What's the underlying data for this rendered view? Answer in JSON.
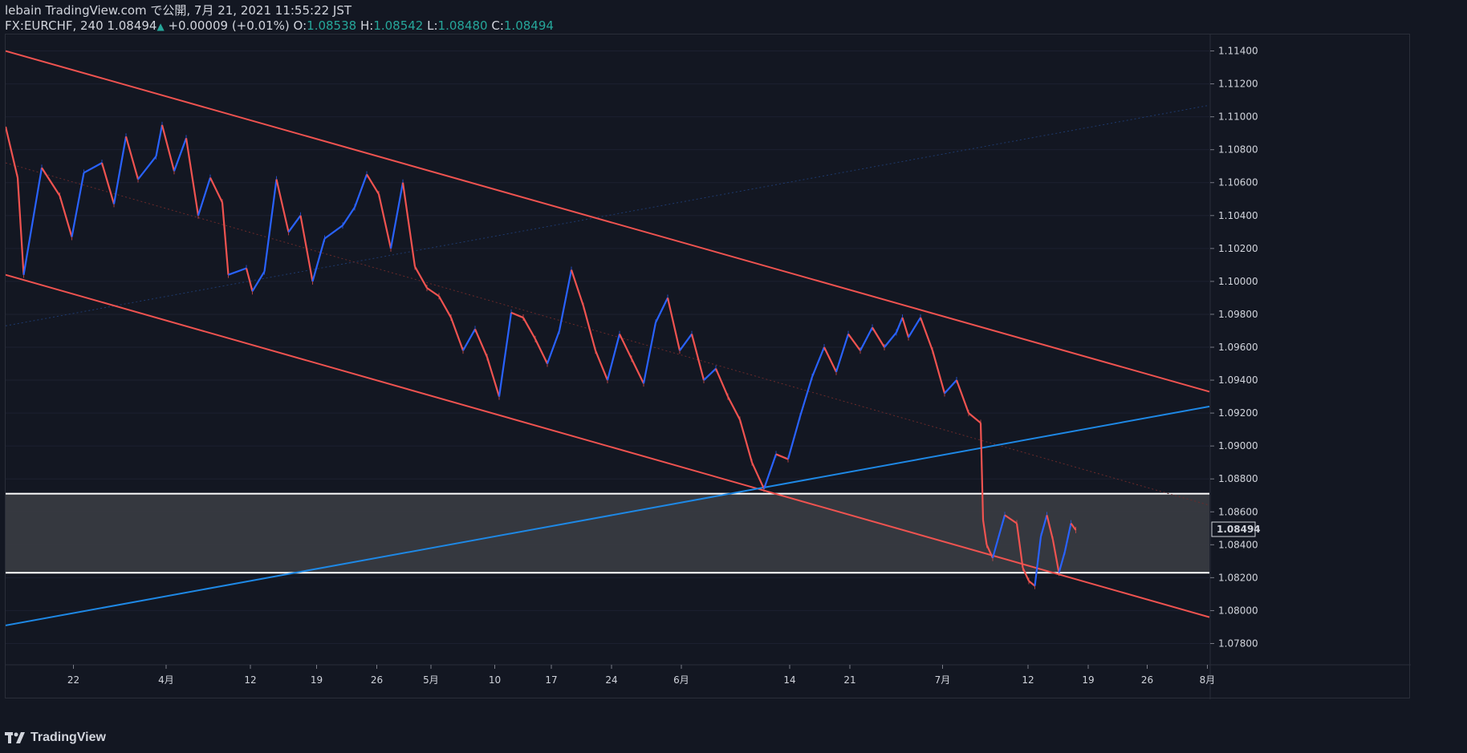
{
  "header": {
    "publisher_line": "lebain TradingView.com で公開, 7月 21, 2021 11:55:22 JST",
    "symbol": "FX:EURCHF, 240",
    "last_price": "1.08494",
    "change_arrow": "▲",
    "change": "+0.00009 (+0.01%)",
    "o_label": "O:",
    "o_value": "1.08538",
    "h_label": "H:",
    "h_value": "1.08542",
    "l_label": "L:",
    "l_value": "1.08480",
    "c_label": "C:",
    "c_value": "1.08494"
  },
  "footer": {
    "brand": "TradingView"
  },
  "chart_data": {
    "type": "candlestick",
    "symbol": "FX:EURCHF",
    "interval": "240",
    "ylim": [
      1.077,
      1.115
    ],
    "y_ticks": [
      "1.11400",
      "1.11200",
      "1.11000",
      "1.10800",
      "1.10600",
      "1.10400",
      "1.10200",
      "1.10000",
      "1.09800",
      "1.09600",
      "1.09400",
      "1.09200",
      "1.09000",
      "1.08800",
      "1.08600",
      "1.08400",
      "1.08200",
      "1.08000",
      "1.07800"
    ],
    "x_ticks": [
      "22",
      "4月",
      "12",
      "19",
      "26",
      "5月",
      "10",
      "17",
      "24",
      "6月",
      "14",
      "21",
      "7月",
      "12",
      "19",
      "26",
      "8月"
    ],
    "current_price_label": "1.08494",
    "current_price": 1.08494,
    "colors": {
      "up": "#2962ff",
      "down": "#f05350",
      "channel": "#f05350",
      "trendline": "#1e88e5",
      "zone": "#3a3c42",
      "zone_border": "#ffffff"
    },
    "price_path": [
      [
        0,
        1.1094
      ],
      [
        0.01,
        1.1063
      ],
      [
        0.015,
        1.1004
      ],
      [
        0.03,
        1.1069
      ],
      [
        0.045,
        1.1052
      ],
      [
        0.055,
        1.1027
      ],
      [
        0.065,
        1.1066
      ],
      [
        0.08,
        1.1072
      ],
      [
        0.09,
        1.1047
      ],
      [
        0.1,
        1.1088
      ],
      [
        0.11,
        1.1062
      ],
      [
        0.125,
        1.1076
      ],
      [
        0.13,
        1.1095
      ],
      [
        0.14,
        1.1067
      ],
      [
        0.15,
        1.1087
      ],
      [
        0.16,
        1.104
      ],
      [
        0.17,
        1.1063
      ],
      [
        0.18,
        1.1048
      ],
      [
        0.185,
        1.1004
      ],
      [
        0.2,
        1.1008
      ],
      [
        0.205,
        1.0994
      ],
      [
        0.215,
        1.1006
      ],
      [
        0.225,
        1.1062
      ],
      [
        0.235,
        1.103
      ],
      [
        0.245,
        1.104
      ],
      [
        0.255,
        1.1
      ],
      [
        0.265,
        1.1026
      ],
      [
        0.28,
        1.1034
      ],
      [
        0.29,
        1.1045
      ],
      [
        0.3,
        1.1065
      ],
      [
        0.31,
        1.1053
      ],
      [
        0.32,
        1.102
      ],
      [
        0.33,
        1.106
      ],
      [
        0.34,
        1.1009
      ],
      [
        0.35,
        1.0996
      ],
      [
        0.36,
        1.0991
      ],
      [
        0.37,
        1.0978
      ],
      [
        0.38,
        1.0958
      ],
      [
        0.39,
        1.0971
      ],
      [
        0.4,
        1.0954
      ],
      [
        0.41,
        1.093
      ],
      [
        0.42,
        1.0981
      ],
      [
        0.43,
        1.0978
      ],
      [
        0.44,
        1.0965
      ],
      [
        0.45,
        1.095
      ],
      [
        0.46,
        1.097
      ],
      [
        0.47,
        1.1007
      ],
      [
        0.48,
        1.0985
      ],
      [
        0.49,
        1.0958
      ],
      [
        0.5,
        1.094
      ],
      [
        0.51,
        1.0968
      ],
      [
        0.52,
        1.0953
      ],
      [
        0.53,
        1.0938
      ],
      [
        0.54,
        1.0975
      ],
      [
        0.55,
        1.099
      ],
      [
        0.56,
        1.0958
      ],
      [
        0.57,
        1.0968
      ],
      [
        0.58,
        1.094
      ],
      [
        0.59,
        1.0947
      ],
      [
        0.6,
        1.093
      ],
      [
        0.61,
        1.0916
      ],
      [
        0.62,
        1.089
      ],
      [
        0.63,
        1.0874
      ],
      [
        0.64,
        1.0895
      ],
      [
        0.65,
        1.0892
      ],
      [
        0.66,
        1.0918
      ],
      [
        0.67,
        1.0942
      ],
      [
        0.68,
        1.096
      ],
      [
        0.69,
        1.0945
      ],
      [
        0.7,
        1.0968
      ],
      [
        0.71,
        1.0958
      ],
      [
        0.72,
        1.0972
      ],
      [
        0.73,
        1.096
      ],
      [
        0.74,
        1.0969
      ],
      [
        0.745,
        1.0978
      ],
      [
        0.75,
        1.0966
      ],
      [
        0.76,
        1.0978
      ],
      [
        0.77,
        1.0958
      ],
      [
        0.78,
        1.0932
      ],
      [
        0.79,
        1.094
      ],
      [
        0.8,
        1.092
      ],
      [
        0.81,
        1.0914
      ],
      [
        0.812,
        1.0855
      ],
      [
        0.815,
        1.084
      ],
      [
        0.82,
        1.0832
      ],
      [
        0.83,
        1.0858
      ],
      [
        0.84,
        1.0853
      ],
      [
        0.845,
        1.0826
      ],
      [
        0.85,
        1.0818
      ],
      [
        0.855,
        1.0815
      ],
      [
        0.86,
        1.0845
      ],
      [
        0.865,
        1.0858
      ],
      [
        0.87,
        1.0843
      ],
      [
        0.875,
        1.0823
      ],
      [
        0.88,
        1.0836
      ],
      [
        0.885,
        1.0853
      ],
      [
        0.889,
        1.0849
      ]
    ],
    "drawings": {
      "channel_upper": [
        [
          0,
          1.114
        ],
        [
          1,
          1.0933
        ]
      ],
      "channel_lower": [
        [
          0,
          1.1004
        ],
        [
          1,
          1.0796
        ]
      ],
      "channel_mid": [
        [
          0,
          1.1072
        ],
        [
          1,
          1.0864
        ]
      ],
      "trend_blue": [
        [
          0,
          1.0791
        ],
        [
          1,
          1.0924
        ]
      ],
      "trend_blue_faint": [
        [
          0,
          1.0973
        ],
        [
          1,
          1.1107
        ]
      ],
      "zone_top": 1.0871,
      "zone_bottom": 1.0823
    }
  }
}
